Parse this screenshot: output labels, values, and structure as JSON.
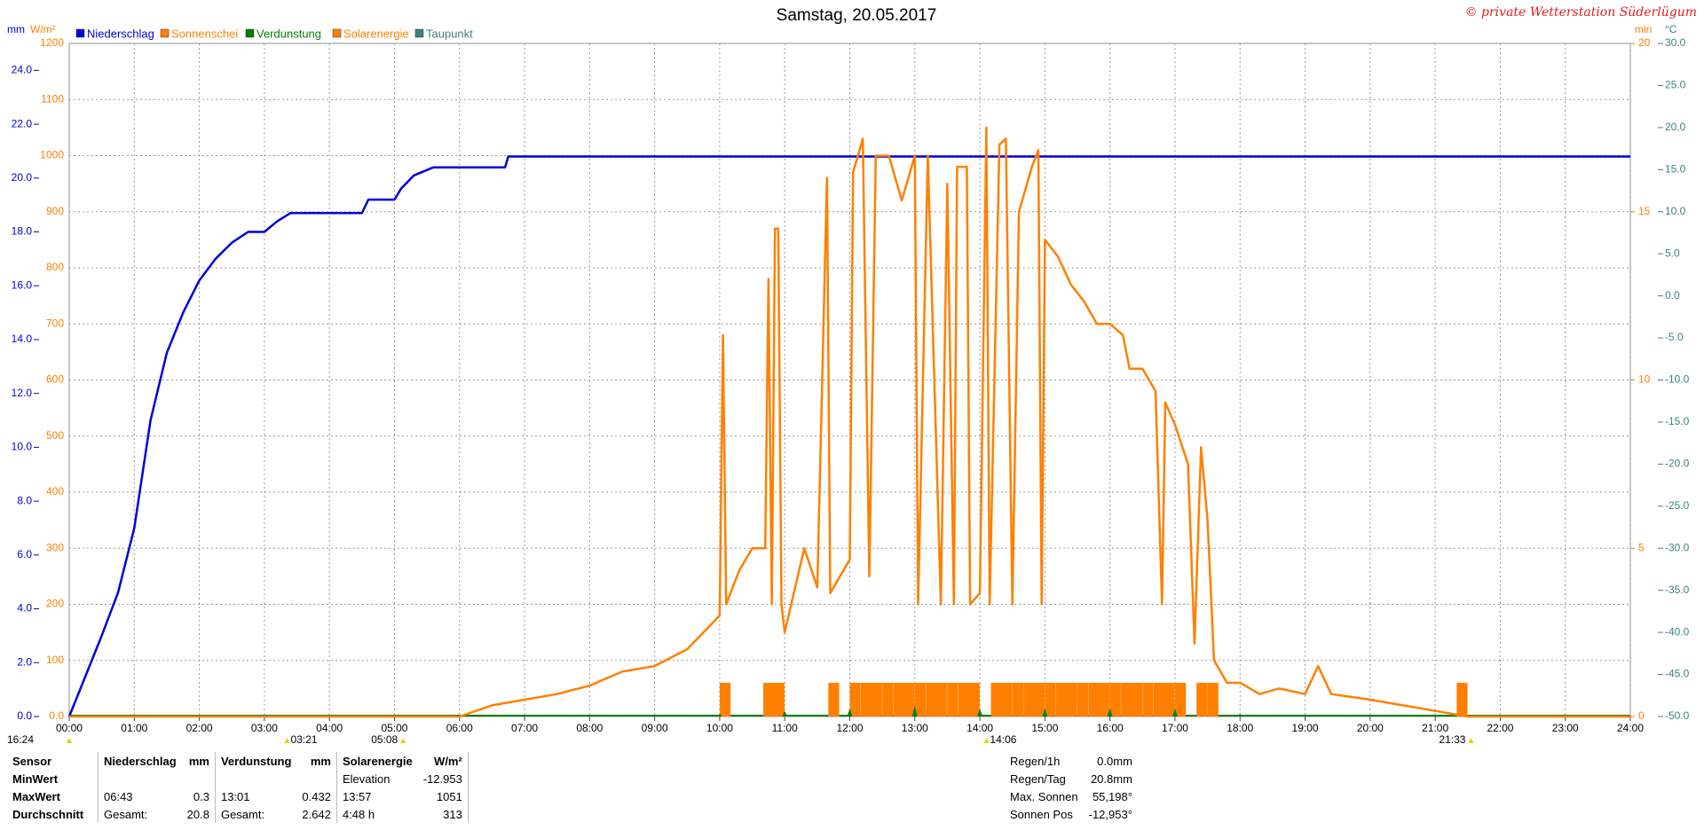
{
  "chart_data": {
    "type": "line",
    "title": "Samstag, 20.05.2017",
    "credit": "© private Wetterstation Süderlügum",
    "axis_labels": {
      "y": "mm",
      "y2": "W/m²",
      "y3": "min",
      "y4": "°C"
    },
    "xlim": [
      0,
      24
    ],
    "xticks": [
      {
        "value": 0,
        "label": "00:00"
      },
      {
        "value": 1,
        "label": "01:00"
      },
      {
        "value": 2,
        "label": "02:00"
      },
      {
        "value": 3,
        "label": "03:00"
      },
      {
        "value": 4,
        "label": "04:00"
      },
      {
        "value": 5,
        "label": "05:00"
      },
      {
        "value": 6,
        "label": "06:00"
      },
      {
        "value": 7,
        "label": "07:00"
      },
      {
        "value": 8,
        "label": "08:00"
      },
      {
        "value": 9,
        "label": "09:00"
      },
      {
        "value": 10,
        "label": "10:00"
      },
      {
        "value": 11,
        "label": "11:00"
      },
      {
        "value": 12,
        "label": "12:00"
      },
      {
        "value": 13,
        "label": "13:00"
      },
      {
        "value": 14,
        "label": "14:00"
      },
      {
        "value": 15,
        "label": "15:00"
      },
      {
        "value": 16,
        "label": "16:00"
      },
      {
        "value": 17,
        "label": "17:00"
      },
      {
        "value": 18,
        "label": "18:00"
      },
      {
        "value": 19,
        "label": "19:00"
      },
      {
        "value": 20,
        "label": "20:00"
      },
      {
        "value": 21,
        "label": "21:00"
      },
      {
        "value": 22,
        "label": "22:00"
      },
      {
        "value": 23,
        "label": "23:00"
      },
      {
        "value": 24,
        "label": "24:00"
      }
    ],
    "ylim": [
      0,
      25
    ],
    "yticks": [
      {
        "value": 0,
        "label": "0.0"
      },
      {
        "value": 2,
        "label": "2.0"
      },
      {
        "value": 4,
        "label": "4.0"
      },
      {
        "value": 6,
        "label": "6.0"
      },
      {
        "value": 8,
        "label": "8.0"
      },
      {
        "value": 10,
        "label": "10.0"
      },
      {
        "value": 12,
        "label": "12.0"
      },
      {
        "value": 14,
        "label": "14.0"
      },
      {
        "value": 16,
        "label": "16.0"
      },
      {
        "value": 18,
        "label": "18.0"
      },
      {
        "value": 20,
        "label": "20.0"
      },
      {
        "value": 22,
        "label": "22.0"
      },
      {
        "value": 24,
        "label": "24.0"
      }
    ],
    "y2lim": [
      0,
      1200
    ],
    "y2ticks": [
      {
        "value": 0,
        "label": "0.0"
      },
      100,
      200,
      300,
      400,
      500,
      600,
      700,
      800,
      900,
      1000,
      1100,
      1200
    ],
    "y3lim": [
      0,
      20
    ],
    "y3ticks": [
      0,
      5,
      10,
      15,
      20
    ],
    "y4lim": [
      -50,
      30
    ],
    "y4ticks": [
      {
        "value": -50,
        "label": "-50.0"
      },
      {
        "value": -45,
        "label": "-45.0"
      },
      {
        "value": -40,
        "label": "-40.0"
      },
      {
        "value": -35,
        "label": "-35.0"
      },
      {
        "value": -30,
        "label": "-30.0"
      },
      {
        "value": -25,
        "label": "-25.0"
      },
      {
        "value": -20,
        "label": "-20.0"
      },
      {
        "value": -15,
        "label": "-15.0"
      },
      {
        "value": -10,
        "label": "-10.0"
      },
      {
        "value": -5,
        "label": "-5.0"
      },
      {
        "value": 0,
        "label": "0.0"
      },
      {
        "value": 5,
        "label": "5.0"
      },
      {
        "value": 10,
        "label": "10.0"
      },
      {
        "value": 15,
        "label": "15.0"
      },
      {
        "value": 20,
        "label": "20.0"
      },
      {
        "value": 25,
        "label": "25.0"
      },
      {
        "value": 30,
        "label": "30.0"
      }
    ],
    "grid": true,
    "series": [
      {
        "name": "Niederschlag",
        "color": "#0000dd",
        "type": "line",
        "axis": "y",
        "x": [
          0,
          0.25,
          0.5,
          0.75,
          1.0,
          1.25,
          1.5,
          1.75,
          2.0,
          2.25,
          2.5,
          2.75,
          3.0,
          3.2,
          3.4,
          4.0,
          4.5,
          4.6,
          5.0,
          5.1,
          5.3,
          5.6,
          6.7,
          6.75,
          24
        ],
        "values": [
          0,
          1.5,
          3.0,
          4.6,
          7.0,
          11.0,
          13.5,
          15.0,
          16.2,
          17.0,
          17.6,
          18.0,
          18.0,
          18.4,
          18.7,
          18.7,
          18.7,
          19.2,
          19.2,
          19.6,
          20.1,
          20.4,
          20.4,
          20.8,
          20.8
        ]
      },
      {
        "name": "Sonnenschei",
        "color": "#ff8000",
        "type": "bar",
        "axis": "y3",
        "x": [
          10.0,
          10.67,
          10.83,
          11.67,
          12.0,
          12.17,
          12.33,
          12.5,
          12.67,
          12.83,
          13.0,
          13.17,
          13.33,
          13.5,
          13.67,
          13.83,
          14.17,
          14.33,
          14.5,
          14.67,
          14.83,
          15.0,
          15.17,
          15.33,
          15.5,
          15.67,
          15.83,
          16.0,
          16.17,
          16.33,
          16.5,
          16.67,
          16.83,
          17.0,
          17.33,
          17.5,
          21.33
        ],
        "values": [
          1,
          1,
          1,
          1,
          1,
          1,
          1,
          1,
          1,
          1,
          1,
          1,
          1,
          1,
          1,
          1,
          1,
          1,
          1,
          1,
          1,
          1,
          1,
          1,
          1,
          1,
          1,
          1,
          1,
          1,
          1,
          1,
          1,
          1,
          1,
          1,
          1
        ]
      },
      {
        "name": "Verdunstung",
        "color": "#008000",
        "type": "stem",
        "axis": "y",
        "x": [
          10.0,
          11.0,
          12.0,
          13.0,
          14.0,
          15.0,
          16.0,
          17.0,
          18.0
        ],
        "values": [
          0.1,
          0.2,
          0.3,
          0.4,
          0.3,
          0.3,
          0.3,
          0.3,
          0.1
        ]
      },
      {
        "name": "Solarenergie",
        "color": "#ff8000",
        "type": "line",
        "axis": "y2",
        "x": [
          0,
          6.0,
          6.5,
          7.0,
          7.5,
          8.0,
          8.5,
          9.0,
          9.5,
          10.0,
          10.05,
          10.1,
          10.3,
          10.5,
          10.7,
          10.75,
          10.8,
          10.85,
          10.9,
          10.95,
          11.0,
          11.3,
          11.5,
          11.65,
          11.7,
          12.0,
          12.05,
          12.2,
          12.3,
          12.4,
          12.6,
          12.8,
          13.0,
          13.05,
          13.2,
          13.4,
          13.5,
          13.6,
          13.65,
          13.8,
          13.85,
          14.0,
          14.1,
          14.15,
          14.3,
          14.4,
          14.5,
          14.6,
          14.8,
          14.9,
          14.95,
          15.0,
          15.2,
          15.4,
          15.6,
          15.8,
          16.0,
          16.2,
          16.3,
          16.5,
          16.7,
          16.8,
          16.85,
          17.0,
          17.2,
          17.3,
          17.4,
          17.5,
          17.6,
          17.8,
          18.0,
          18.3,
          18.6,
          19.0,
          19.2,
          19.4,
          20.0,
          20.5,
          21.0,
          21.5,
          24
        ],
        "values": [
          0,
          0,
          20,
          30,
          40,
          55,
          80,
          90,
          120,
          180,
          680,
          200,
          260,
          300,
          300,
          780,
          200,
          870,
          870,
          200,
          150,
          300,
          230,
          960,
          220,
          280,
          970,
          1030,
          250,
          1000,
          1000,
          920,
          1000,
          200,
          1000,
          200,
          950,
          200,
          980,
          980,
          200,
          220,
          1050,
          200,
          1020,
          1030,
          200,
          900,
          980,
          1010,
          200,
          850,
          820,
          770,
          740,
          700,
          700,
          680,
          620,
          620,
          580,
          200,
          560,
          520,
          450,
          130,
          480,
          350,
          100,
          60,
          60,
          40,
          50,
          40,
          90,
          40,
          30,
          20,
          10,
          0,
          0
        ]
      },
      {
        "name": "Taupunkt",
        "color": "#408080",
        "type": "line",
        "axis": "y4",
        "x": [],
        "values": []
      }
    ],
    "time_markers": [
      "16:24",
      "03:21",
      "05:08",
      "14:06",
      "21:33"
    ]
  },
  "footer": {
    "rows": [
      [
        "Sensor",
        "Niederschlag",
        "mm",
        "Verdunstung",
        "mm",
        "Solarenergie",
        "W/m²"
      ],
      [
        "MinWert",
        null,
        null,
        null,
        null,
        "Elevation",
        "-12.953"
      ],
      [
        "MaxWert",
        "06:43",
        "0.3",
        "13:01",
        "0.432",
        "13:57",
        "1051"
      ],
      [
        "Durchschnitt",
        "Gesamt:",
        "20.8",
        "Gesamt:",
        "2.642",
        "4:48 h",
        "313"
      ]
    ],
    "info": [
      [
        "Regen/1h",
        "0.0mm"
      ],
      [
        "Regen/Tag",
        "20.8mm"
      ],
      [
        "Max. Sonnen",
        "55,198°"
      ],
      [
        "Sonnen Pos",
        "-12,953°"
      ]
    ]
  }
}
